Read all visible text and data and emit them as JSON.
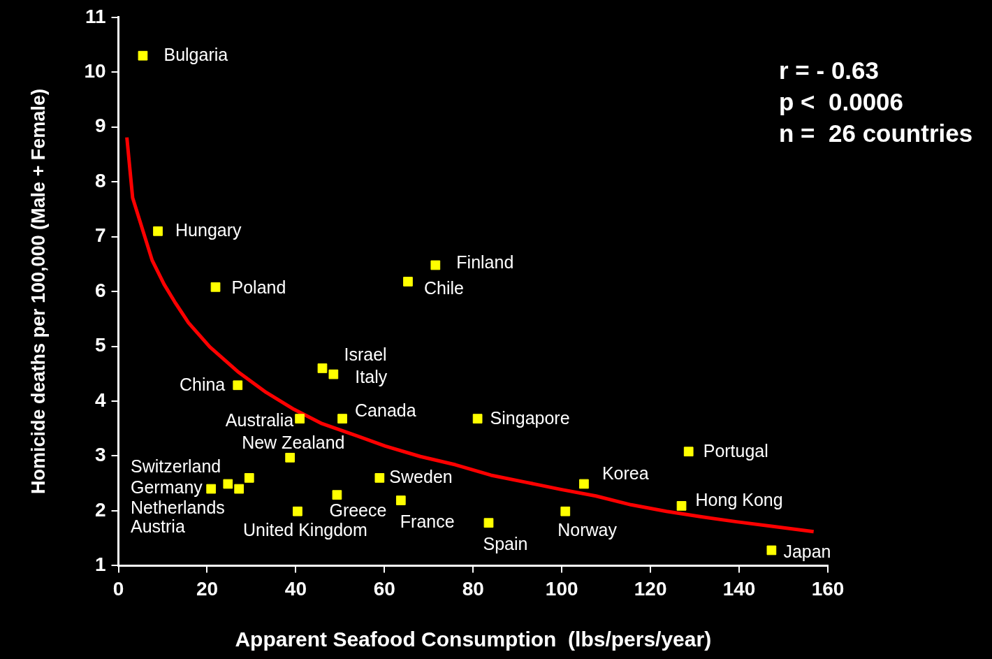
{
  "chart_data": {
    "type": "scatter",
    "xlabel": "Apparent Seafood Consumption  (lbs/pers/year)",
    "ylabel": "Homicide deaths per 100,000 (Male + Female)",
    "xlim": [
      0,
      160
    ],
    "xticks": [
      0,
      20,
      40,
      60,
      80,
      100,
      120,
      140,
      160
    ],
    "ylim": [
      1,
      11
    ],
    "yticks": [
      1,
      2,
      3,
      4,
      5,
      6,
      7,
      8,
      9,
      10,
      11
    ],
    "grid": false,
    "legend": false,
    "series": [
      {
        "marker": "square",
        "color": "#ffff00",
        "x": [
          5.5,
          8.9,
          21.9,
          26.9,
          65.3,
          71.5,
          46,
          48.5,
          40.9,
          50.5,
          81,
          38.7,
          20.9,
          24.7,
          27.2,
          29.5,
          40.4,
          49.3,
          58.9,
          63.7,
          83.5,
          100.8,
          105,
          128.6,
          127,
          147.3
        ],
        "values": [
          10.3,
          7.1,
          6.08,
          4.29,
          6.18,
          6.48,
          4.6,
          4.49,
          3.68,
          3.68,
          3.68,
          2.97,
          2.4,
          2.49,
          2.4,
          2.6,
          1.99,
          2.29,
          2.6,
          2.19,
          1.78,
          1.99,
          2.49,
          3.08,
          2.09,
          1.28
        ]
      },
      {
        "type": "line",
        "color": "#ff0000",
        "x": [
          1.9,
          3.2,
          7.6,
          10.3,
          12.7,
          15.8,
          20.6,
          26.9,
          33.3,
          39.6,
          45.9,
          52.3,
          60.2,
          68.1,
          76,
          84,
          91.9,
          99.8,
          107.7,
          115.6,
          123.6,
          131.5,
          139.4,
          147.3,
          156.8
        ],
        "values": [
          8.81,
          7.71,
          6.57,
          6.13,
          5.81,
          5.43,
          4.99,
          4.54,
          4.16,
          3.85,
          3.59,
          3.41,
          3.18,
          2.99,
          2.84,
          2.65,
          2.52,
          2.39,
          2.27,
          2.11,
          1.99,
          1.89,
          1.8,
          1.72,
          1.62
        ]
      }
    ],
    "annotations": [
      "r = - 0.63",
      "p <  0.0006",
      "n =  26 countries",
      "Switzerland",
      "Germany",
      "Netherlands",
      "Austria",
      {
        "text": "Bulgaria",
        "x": 5.5,
        "y": 10.3
      },
      {
        "text": "Hungary",
        "x": 8.9,
        "y": 7.1
      },
      {
        "text": "Poland",
        "x": 21.9,
        "y": 6.08
      },
      {
        "text": "China",
        "x": 26.9,
        "y": 4.29
      },
      {
        "text": "Chile",
        "x": 65.3,
        "y": 6.18
      },
      {
        "text": "Finland",
        "x": 71.5,
        "y": 6.48
      },
      {
        "text": "Israel",
        "x": 46,
        "y": 4.6
      },
      {
        "text": "Italy",
        "x": 48.5,
        "y": 4.49
      },
      {
        "text": "Australia",
        "x": 40.9,
        "y": 3.68
      },
      {
        "text": "Canada",
        "x": 50.5,
        "y": 3.68
      },
      {
        "text": "Singapore",
        "x": 81,
        "y": 3.68
      },
      {
        "text": "New Zealand",
        "x": 38.7,
        "y": 2.97
      },
      {
        "text": "United Kingdom",
        "x": 40.4,
        "y": 1.99
      },
      {
        "text": "Greece",
        "x": 49.3,
        "y": 2.29
      },
      {
        "text": "Sweden",
        "x": 58.9,
        "y": 2.6
      },
      {
        "text": "France",
        "x": 63.7,
        "y": 2.19
      },
      {
        "text": "Spain",
        "x": 83.5,
        "y": 1.78
      },
      {
        "text": "Norway",
        "x": 100.8,
        "y": 1.99
      },
      {
        "text": "Korea",
        "x": 105,
        "y": 2.49
      },
      {
        "text": "Portugal",
        "x": 128.6,
        "y": 3.08
      },
      {
        "text": "Hong Kong",
        "x": 127,
        "y": 2.09
      },
      {
        "text": "Japan",
        "x": 147.3,
        "y": 1.28
      }
    ]
  }
}
